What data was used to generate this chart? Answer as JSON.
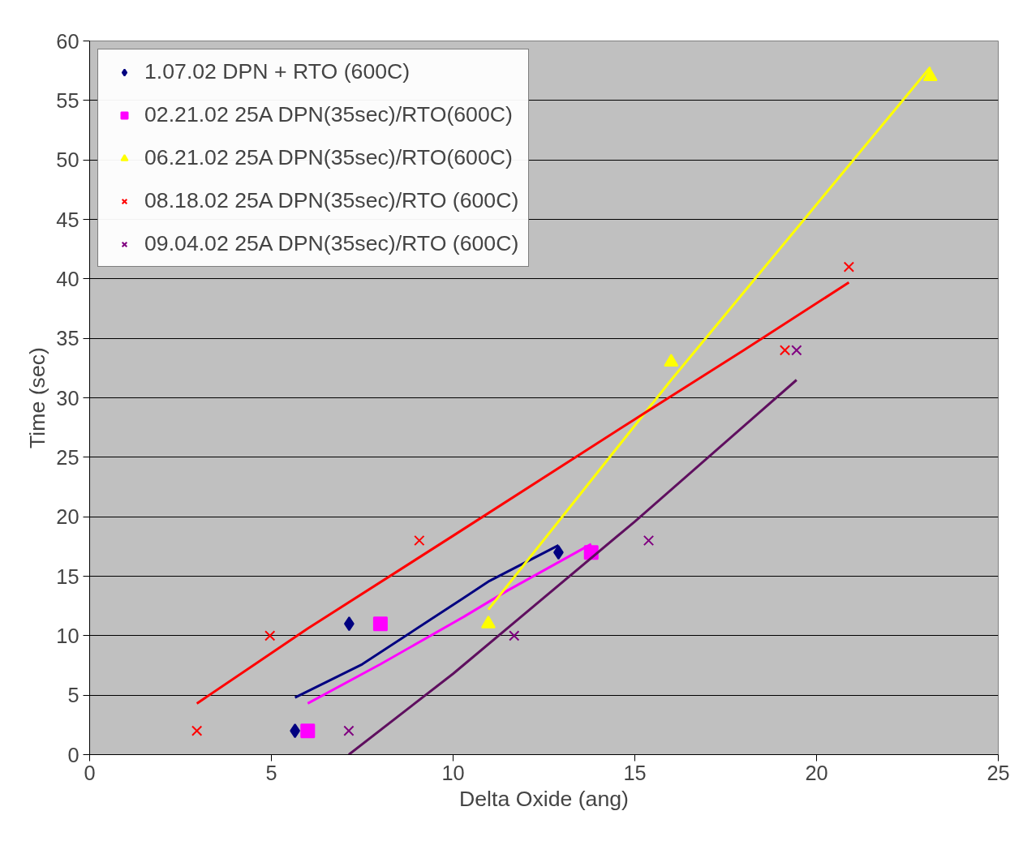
{
  "chart_data": {
    "type": "scatter",
    "xlabel": "Delta Oxide (ang)",
    "ylabel": "Time (sec)",
    "xlim": [
      0,
      25
    ],
    "ylim": [
      0,
      60
    ],
    "xticks": [
      0,
      5,
      10,
      15,
      20,
      25
    ],
    "yticks": [
      0,
      5,
      10,
      15,
      20,
      25,
      30,
      35,
      40,
      45,
      50,
      55,
      60
    ],
    "grid": "y",
    "legend": "top left",
    "series": [
      {
        "name": "1.07.02 DPN + RTO (600C)",
        "color": "#000080",
        "marker": "diamond",
        "x": [
          5.65,
          7.14,
          12.9
        ],
        "values": [
          2,
          11,
          17
        ]
      },
      {
        "name": "02.21.02 25A DPN(35sec)/RTO(600C)",
        "color": "#ff00ff",
        "marker": "square",
        "x": [
          6.0,
          8.0,
          13.8
        ],
        "values": [
          2,
          11,
          17
        ]
      },
      {
        "name": "06.21.02 25A DPN(35sec)/RTO(600C)",
        "color": "#ffff00",
        "marker": "triangle",
        "x": [
          10.97,
          16.0,
          23.13
        ],
        "values": [
          11,
          33,
          57
        ]
      },
      {
        "name": "08.18.02 25A DPN(35sec)/RTO (600C)",
        "color": "#ff0000",
        "marker": "cross",
        "x": [
          2.95,
          4.96,
          9.07,
          19.13,
          20.89
        ],
        "values": [
          2,
          10,
          18,
          34,
          41
        ]
      },
      {
        "name": "09.04.02 25A DPN(35sec)/RTO (600C)",
        "color": "#800080",
        "marker": "cross",
        "x": [
          7.13,
          11.68,
          15.38,
          19.45
        ],
        "values": [
          2,
          10,
          18,
          34
        ]
      },
      {
        "type": "line",
        "color": "#000080",
        "x": [
          5.65,
          7.5,
          10.3,
          11.0,
          12.9
        ],
        "values": [
          4.8,
          7.6,
          13.2,
          14.6,
          17.6
        ]
      },
      {
        "type": "line",
        "color": "#ff00ff",
        "x": [
          6.0,
          8.0,
          10.3,
          11.5,
          13.8
        ],
        "values": [
          4.3,
          7.6,
          11.6,
          13.8,
          17.7
        ]
      },
      {
        "type": "line",
        "color": "#ffff00",
        "x": [
          10.97,
          16.0,
          23.13
        ],
        "values": [
          12.2,
          31.5,
          57.8
        ]
      },
      {
        "type": "line",
        "color": "#ff0000",
        "x": [
          2.95,
          4.5,
          6.0,
          10.0,
          15.0,
          18.0,
          20.89
        ],
        "values": [
          4.3,
          7.5,
          10.6,
          18.4,
          28.2,
          34.0,
          39.7
        ]
      },
      {
        "type": "line",
        "color": "#5f0f5f",
        "x": [
          7.13,
          10.0,
          15.0,
          19.45
        ],
        "values": [
          0,
          6.8,
          19.6,
          31.5
        ]
      }
    ]
  }
}
